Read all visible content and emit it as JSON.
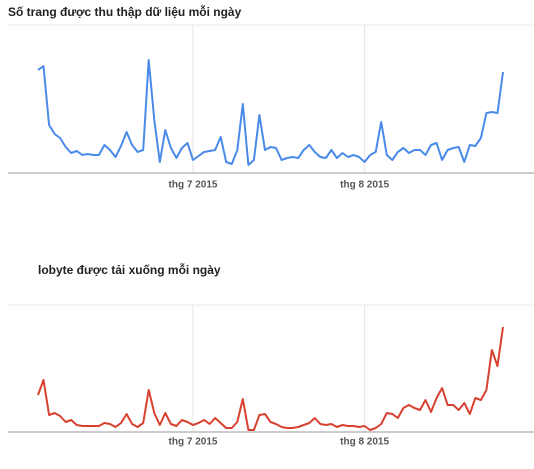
{
  "chart_data": [
    {
      "type": "line",
      "title": "Số trang được thu thập dữ liệu mỗi ngày",
      "categories": [
        null,
        null,
        null,
        null,
        null,
        null,
        null,
        null,
        null,
        null,
        null,
        null,
        null,
        null,
        null,
        null,
        null,
        null,
        null,
        null,
        null,
        null,
        null,
        null,
        null,
        null,
        null,
        null,
        "thg 7 2015",
        null,
        null,
        null,
        null,
        null,
        null,
        null,
        null,
        null,
        null,
        null,
        null,
        null,
        null,
        null,
        null,
        null,
        null,
        null,
        null,
        null,
        null,
        null,
        null,
        null,
        null,
        null,
        null,
        null,
        null,
        "thg 8 2015",
        null,
        null,
        null,
        null,
        null,
        null,
        null,
        null,
        null,
        null,
        null,
        null,
        null,
        null,
        null,
        null,
        null,
        null,
        null,
        null,
        null,
        null,
        null,
        null,
        null
      ],
      "series": [
        {
          "color": "#4a8ae8",
          "values": [
            103,
            107,
            48,
            39,
            35,
            26,
            20,
            22,
            18,
            19,
            18,
            18,
            28,
            23,
            16,
            27,
            41,
            28,
            21,
            23,
            113,
            53,
            11,
            43,
            25,
            15,
            25,
            30,
            13,
            17,
            21,
            22,
            23,
            36,
            11,
            9,
            23,
            69,
            8,
            13,
            58,
            23,
            26,
            25,
            13,
            15,
            16,
            15,
            23,
            28,
            21,
            16,
            15,
            23,
            15,
            20,
            16,
            18,
            16,
            11,
            18,
            21,
            51,
            18,
            13,
            21,
            25,
            20,
            23,
            23,
            18,
            28,
            30,
            13,
            23,
            25,
            26,
            11,
            28,
            27,
            35,
            60,
            61,
            60,
            101
          ]
        }
      ],
      "ylim": [
        0,
        148
      ]
    },
    {
      "type": "line",
      "title": "lobyte được tải xuống mỗi ngày",
      "categories": [
        null,
        null,
        null,
        null,
        null,
        null,
        null,
        null,
        null,
        null,
        null,
        null,
        null,
        null,
        null,
        null,
        null,
        null,
        null,
        null,
        null,
        null,
        null,
        null,
        null,
        null,
        null,
        null,
        "thg 7 2015",
        null,
        null,
        null,
        null,
        null,
        null,
        null,
        null,
        null,
        null,
        null,
        null,
        null,
        null,
        null,
        null,
        null,
        null,
        null,
        null,
        null,
        null,
        null,
        null,
        null,
        null,
        null,
        null,
        null,
        null,
        "thg 8 2015",
        null,
        null,
        null,
        null,
        null,
        null,
        null,
        null,
        null,
        null,
        null,
        null,
        null,
        null,
        null,
        null,
        null,
        null,
        null,
        null,
        null,
        null,
        null,
        null,
        null
      ],
      "series": [
        {
          "color": "#d8412f",
          "values": [
            37,
            52,
            17,
            19,
            16,
            10,
            12,
            7,
            6,
            6,
            6,
            6,
            9,
            8,
            5,
            9,
            18,
            8,
            5,
            9,
            42,
            19,
            7,
            19,
            8,
            6,
            12,
            10,
            7,
            9,
            12,
            8,
            14,
            9,
            4,
            4,
            10,
            33,
            2,
            2,
            17,
            18,
            10,
            8,
            5,
            4,
            4,
            5,
            7,
            9,
            14,
            8,
            7,
            8,
            5,
            7,
            6,
            6,
            5,
            6,
            2,
            4,
            8,
            19,
            18,
            14,
            24,
            27,
            24,
            22,
            32,
            20,
            34,
            44,
            27,
            27,
            22,
            29,
            18,
            34,
            32,
            42,
            82,
            66,
            105
          ]
        }
      ],
      "ylim": [
        0,
        127
      ]
    }
  ]
}
